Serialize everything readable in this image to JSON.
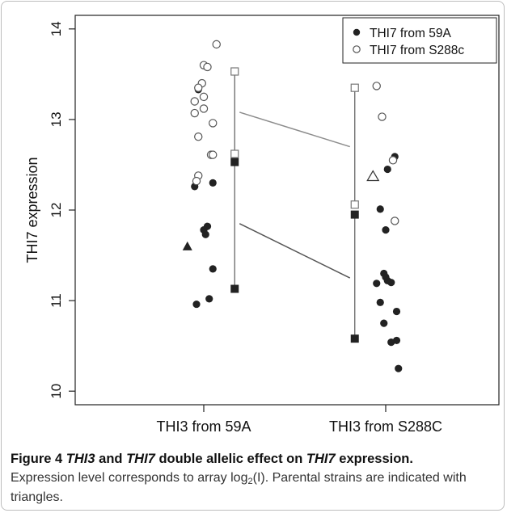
{
  "chart_data": {
    "type": "scatter",
    "ylabel": "THI7 expression",
    "xlabel": "",
    "ylim": [
      9.85,
      14.15
    ],
    "yticks": [
      10,
      11,
      12,
      13,
      14
    ],
    "categories": [
      "THI3 from 59A",
      "THI3 from S288C"
    ],
    "legend": {
      "placement": "top-right",
      "entries": [
        {
          "label": "THI7 from 59A",
          "marker": "filled-circle"
        },
        {
          "label": "THI7 from S288c",
          "marker": "open-circle"
        }
      ]
    },
    "series": [
      {
        "name": "THI7 from 59A",
        "group": 0,
        "marker": "filled-circle",
        "points": [
          {
            "jitter": -0.03,
            "y": 13.33
          },
          {
            "jitter": -0.05,
            "y": 12.26
          },
          {
            "jitter": 0.05,
            "y": 12.3
          },
          {
            "jitter": 0.02,
            "y": 11.82
          },
          {
            "jitter": 0.0,
            "y": 11.78
          },
          {
            "jitter": 0.01,
            "y": 11.73
          },
          {
            "jitter": 0.05,
            "y": 11.35
          },
          {
            "jitter": 0.03,
            "y": 11.02
          },
          {
            "jitter": -0.04,
            "y": 10.96
          }
        ]
      },
      {
        "name": "THI7 from S288c",
        "group": 0,
        "marker": "open-circle",
        "points": [
          {
            "jitter": 0.07,
            "y": 13.83
          },
          {
            "jitter": 0.0,
            "y": 13.6
          },
          {
            "jitter": 0.02,
            "y": 13.58
          },
          {
            "jitter": -0.01,
            "y": 13.4
          },
          {
            "jitter": -0.03,
            "y": 13.35
          },
          {
            "jitter": -0.05,
            "y": 13.2
          },
          {
            "jitter": 0.0,
            "y": 13.25
          },
          {
            "jitter": 0.0,
            "y": 13.12
          },
          {
            "jitter": -0.05,
            "y": 13.07
          },
          {
            "jitter": 0.05,
            "y": 12.96
          },
          {
            "jitter": -0.03,
            "y": 12.81
          },
          {
            "jitter": 0.04,
            "y": 12.61
          },
          {
            "jitter": 0.05,
            "y": 12.61
          },
          {
            "jitter": -0.03,
            "y": 12.38
          },
          {
            "jitter": -0.04,
            "y": 12.32
          }
        ]
      },
      {
        "name": "THI7 from 59A",
        "group": 1,
        "marker": "filled-circle",
        "points": [
          {
            "jitter": 0.05,
            "y": 12.59
          },
          {
            "jitter": 0.01,
            "y": 12.45
          },
          {
            "jitter": -0.03,
            "y": 12.01
          },
          {
            "jitter": 0.0,
            "y": 11.78
          },
          {
            "jitter": -0.01,
            "y": 11.3
          },
          {
            "jitter": 0.0,
            "y": 11.26
          },
          {
            "jitter": 0.01,
            "y": 11.22
          },
          {
            "jitter": -0.05,
            "y": 11.19
          },
          {
            "jitter": 0.03,
            "y": 11.2
          },
          {
            "jitter": -0.03,
            "y": 10.98
          },
          {
            "jitter": 0.06,
            "y": 10.88
          },
          {
            "jitter": -0.01,
            "y": 10.75
          },
          {
            "jitter": 0.06,
            "y": 10.56
          },
          {
            "jitter": 0.03,
            "y": 10.54
          },
          {
            "jitter": 0.07,
            "y": 10.25
          }
        ]
      },
      {
        "name": "THI7 from S288c",
        "group": 1,
        "marker": "open-circle",
        "points": [
          {
            "jitter": -0.05,
            "y": 13.37
          },
          {
            "jitter": -0.02,
            "y": 13.03
          },
          {
            "jitter": 0.04,
            "y": 12.55
          },
          {
            "jitter": 0.05,
            "y": 11.88
          }
        ]
      }
    ],
    "parental_strains": [
      {
        "marker": "filled-triangle",
        "group": 0,
        "jitter": -0.09,
        "y": 11.6
      },
      {
        "marker": "open-triangle",
        "group": 1,
        "jitter": -0.07,
        "y": 12.37
      }
    ],
    "means": [
      {
        "marker": "open-square",
        "x_offset": 0.17,
        "group": 0,
        "y": 13.53
      },
      {
        "marker": "open-square",
        "x_offset": 0.17,
        "group": 0,
        "y": 12.62
      },
      {
        "marker": "filled-square",
        "x_offset": 0.17,
        "group": 0,
        "y": 12.53
      },
      {
        "marker": "filled-square",
        "x_offset": 0.17,
        "group": 0,
        "y": 11.13
      },
      {
        "marker": "open-square",
        "x_offset": -0.17,
        "group": 1,
        "y": 13.35
      },
      {
        "marker": "open-square",
        "x_offset": -0.17,
        "group": 1,
        "y": 12.06
      },
      {
        "marker": "filled-square",
        "x_offset": -0.17,
        "group": 1,
        "y": 11.95
      },
      {
        "marker": "filled-square",
        "x_offset": -0.17,
        "group": 1,
        "y": 10.58
      }
    ],
    "range_bars": [
      {
        "group": 0,
        "x_offset": 0.17,
        "y_low": 12.62,
        "y_high": 13.53
      },
      {
        "group": 0,
        "x_offset": 0.17,
        "y_low": 11.13,
        "y_high": 12.53
      },
      {
        "group": 1,
        "x_offset": -0.17,
        "y_low": 12.06,
        "y_high": 13.35
      },
      {
        "group": 1,
        "x_offset": -0.17,
        "y_low": 10.58,
        "y_high": 11.95
      }
    ],
    "interaction_lines": [
      {
        "series": "THI7 from S288c",
        "color": "#8c8c8c",
        "y_start": 13.08,
        "y_end": 12.7
      },
      {
        "series": "THI7 from 59A",
        "color": "#555555",
        "y_start": 11.85,
        "y_end": 11.25
      }
    ],
    "grid": false,
    "colors": {
      "filled": "#222222",
      "open_stroke": "#555555",
      "square_open": "#777777"
    }
  },
  "caption": {
    "label": "Figure 4",
    "gene_a": "THI3",
    "conj": "and",
    "gene_b": "THI7",
    "title_rest": "double allelic effect on",
    "gene_c": "THI7",
    "title_end": "expression.",
    "body_1": "Expression level corresponds to array log",
    "body_sub": "2",
    "body_2": "(I). Parental strains are indicated with triangles."
  }
}
